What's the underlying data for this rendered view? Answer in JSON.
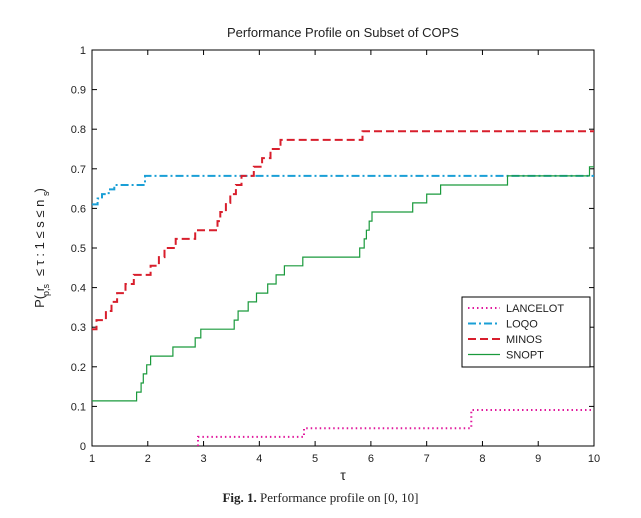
{
  "chart_data": {
    "type": "line",
    "title": "Performance Profile on Subset of COPS",
    "xlabel": "τ",
    "ylabel": "P( r   ≤ τ : 1 ≤ s ≤ n  )",
    "ylabel_sub1": "p,s",
    "ylabel_sub2": "s",
    "xlim": [
      1,
      10
    ],
    "ylim": [
      0,
      1
    ],
    "xticks": [
      "1",
      "2",
      "3",
      "4",
      "5",
      "6",
      "7",
      "8",
      "9",
      "10"
    ],
    "yticks": [
      "0",
      "0.1",
      "0.2",
      "0.3",
      "0.4",
      "0.5",
      "0.6",
      "0.7",
      "0.8",
      "0.9",
      "1"
    ],
    "legend_position": "right",
    "series": [
      {
        "name": "LANCELOT",
        "color": "#e0189c",
        "dash": "dotted",
        "points": [
          [
            2.9,
            0
          ],
          [
            2.9,
            0.023
          ],
          [
            4.8,
            0.023
          ],
          [
            4.8,
            0.045
          ],
          [
            7.8,
            0.045
          ],
          [
            7.8,
            0.091
          ],
          [
            10,
            0.091
          ]
        ]
      },
      {
        "name": "LOQO",
        "color": "#1a9fd6",
        "dash": "dashdot",
        "points": [
          [
            1,
            0.61
          ],
          [
            1.1,
            0.61
          ],
          [
            1.1,
            0.625
          ],
          [
            1.18,
            0.625
          ],
          [
            1.18,
            0.636
          ],
          [
            1.3,
            0.636
          ],
          [
            1.3,
            0.648
          ],
          [
            1.4,
            0.648
          ],
          [
            1.4,
            0.659
          ],
          [
            1.95,
            0.659
          ],
          [
            1.95,
            0.682
          ],
          [
            10,
            0.682
          ]
        ]
      },
      {
        "name": "MINOS",
        "color": "#d81e2c",
        "dash": "dashed",
        "points": [
          [
            1,
            0.295
          ],
          [
            1.08,
            0.295
          ],
          [
            1.08,
            0.318
          ],
          [
            1.25,
            0.318
          ],
          [
            1.25,
            0.341
          ],
          [
            1.35,
            0.341
          ],
          [
            1.35,
            0.364
          ],
          [
            1.45,
            0.364
          ],
          [
            1.45,
            0.386
          ],
          [
            1.6,
            0.386
          ],
          [
            1.6,
            0.409
          ],
          [
            1.75,
            0.409
          ],
          [
            1.75,
            0.432
          ],
          [
            2.05,
            0.432
          ],
          [
            2.05,
            0.455
          ],
          [
            2.2,
            0.455
          ],
          [
            2.2,
            0.477
          ],
          [
            2.3,
            0.477
          ],
          [
            2.3,
            0.5
          ],
          [
            2.5,
            0.5
          ],
          [
            2.5,
            0.523
          ],
          [
            2.85,
            0.523
          ],
          [
            2.85,
            0.545
          ],
          [
            3.25,
            0.545
          ],
          [
            3.25,
            0.568
          ],
          [
            3.3,
            0.568
          ],
          [
            3.3,
            0.591
          ],
          [
            3.4,
            0.591
          ],
          [
            3.4,
            0.614
          ],
          [
            3.48,
            0.614
          ],
          [
            3.48,
            0.636
          ],
          [
            3.58,
            0.636
          ],
          [
            3.58,
            0.659
          ],
          [
            3.68,
            0.659
          ],
          [
            3.68,
            0.682
          ],
          [
            3.9,
            0.682
          ],
          [
            3.9,
            0.705
          ],
          [
            4.05,
            0.705
          ],
          [
            4.05,
            0.727
          ],
          [
            4.2,
            0.727
          ],
          [
            4.2,
            0.75
          ],
          [
            4.38,
            0.75
          ],
          [
            4.38,
            0.773
          ],
          [
            5.85,
            0.773
          ],
          [
            5.85,
            0.795
          ],
          [
            10,
            0.795
          ]
        ]
      },
      {
        "name": "SNOPT",
        "color": "#1a9a3c",
        "dash": "solid",
        "points": [
          [
            1,
            0.114
          ],
          [
            1.8,
            0.114
          ],
          [
            1.8,
            0.136
          ],
          [
            1.88,
            0.136
          ],
          [
            1.88,
            0.159
          ],
          [
            1.92,
            0.159
          ],
          [
            1.92,
            0.182
          ],
          [
            1.98,
            0.182
          ],
          [
            1.98,
            0.205
          ],
          [
            2.05,
            0.205
          ],
          [
            2.05,
            0.227
          ],
          [
            2.45,
            0.227
          ],
          [
            2.45,
            0.25
          ],
          [
            2.85,
            0.25
          ],
          [
            2.85,
            0.273
          ],
          [
            2.95,
            0.273
          ],
          [
            2.95,
            0.295
          ],
          [
            3.55,
            0.295
          ],
          [
            3.55,
            0.318
          ],
          [
            3.62,
            0.318
          ],
          [
            3.62,
            0.341
          ],
          [
            3.8,
            0.341
          ],
          [
            3.8,
            0.364
          ],
          [
            3.95,
            0.364
          ],
          [
            3.95,
            0.386
          ],
          [
            4.15,
            0.386
          ],
          [
            4.15,
            0.409
          ],
          [
            4.3,
            0.409
          ],
          [
            4.3,
            0.432
          ],
          [
            4.45,
            0.432
          ],
          [
            4.45,
            0.455
          ],
          [
            4.78,
            0.455
          ],
          [
            4.78,
            0.477
          ],
          [
            5.8,
            0.477
          ],
          [
            5.8,
            0.5
          ],
          [
            5.88,
            0.5
          ],
          [
            5.88,
            0.523
          ],
          [
            5.92,
            0.523
          ],
          [
            5.92,
            0.545
          ],
          [
            5.97,
            0.545
          ],
          [
            5.97,
            0.568
          ],
          [
            6.02,
            0.568
          ],
          [
            6.02,
            0.591
          ],
          [
            6.75,
            0.591
          ],
          [
            6.75,
            0.614
          ],
          [
            7.0,
            0.614
          ],
          [
            7.0,
            0.636
          ],
          [
            7.25,
            0.636
          ],
          [
            7.25,
            0.659
          ],
          [
            8.45,
            0.659
          ],
          [
            8.45,
            0.682
          ],
          [
            9.92,
            0.682
          ],
          [
            9.92,
            0.705
          ],
          [
            10,
            0.705
          ]
        ]
      }
    ]
  },
  "caption": {
    "label": "Fig. 1.",
    "text": " Performance profile on [0, 10]"
  }
}
